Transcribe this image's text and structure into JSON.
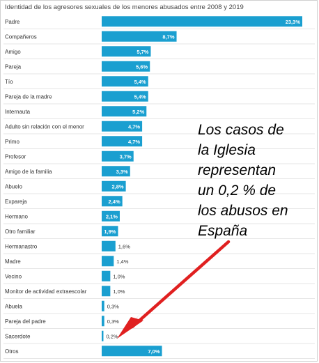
{
  "chart_data": {
    "type": "bar",
    "orientation": "horizontal",
    "title": "Identidad de los agresores sexuales de los menores abusados entre 2008 y 2019",
    "categories": [
      "Padre",
      "Compañeros",
      "Amigo",
      "Pareja",
      "Tío",
      "Pareja de la madre",
      "Internauta",
      "Adulto sin relación con el menor",
      "Primo",
      "Profesor",
      "Amigo de la familia",
      "Abuelo",
      "Expareja",
      "Hermano",
      "Otro familiar",
      "Hermanastro",
      "Madre",
      "Vecino",
      "Monitor de actividad extraescolar",
      "Abuela",
      "Pareja del padre",
      "Sacerdote",
      "Otros"
    ],
    "values": [
      23.3,
      8.7,
      5.7,
      5.6,
      5.4,
      5.4,
      5.2,
      4.7,
      4.7,
      3.7,
      3.3,
      2.8,
      2.4,
      2.1,
      1.9,
      1.6,
      1.4,
      1.0,
      1.0,
      0.3,
      0.3,
      0.2,
      7.0
    ],
    "labels": [
      "23,3%",
      "8,7%",
      "5,7%",
      "5,6%",
      "5,4%",
      "5,4%",
      "5,2%",
      "4,7%",
      "4,7%",
      "3,7%",
      "3,3%",
      "2,8%",
      "2,4%",
      "2,1%",
      "1,9%",
      "1,6%",
      "1,4%",
      "1,0%",
      "1,0%",
      "0,3%",
      "0,3%",
      "0,2%",
      "7,0%"
    ],
    "xlim": [
      0,
      23.3
    ],
    "grid": true,
    "bar_color": "#1a9fd0",
    "xlabel": "",
    "ylabel": ""
  },
  "annotation": {
    "text": "Los casos de\nla Iglesia\nrepresentan\nun 0,2 % de\nlos abusos en\nEspaña",
    "arrow_color": "#e02020"
  }
}
